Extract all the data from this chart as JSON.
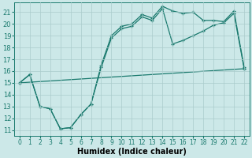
{
  "xlabel": "Humidex (Indice chaleur)",
  "background_color": "#cce8e8",
  "grid_color": "#aacccc",
  "line_color": "#1a7a6e",
  "xlim": [
    -0.5,
    22.5
  ],
  "ylim": [
    10.5,
    21.8
  ],
  "yticks": [
    11,
    12,
    13,
    14,
    15,
    16,
    17,
    18,
    19,
    20,
    21
  ],
  "xticks": [
    0,
    1,
    2,
    3,
    4,
    5,
    6,
    7,
    8,
    9,
    10,
    11,
    12,
    13,
    14,
    15,
    16,
    17,
    18,
    19,
    20,
    21,
    22
  ],
  "series1_x": [
    0,
    1,
    2,
    3,
    4,
    5,
    6,
    7,
    8,
    9,
    10,
    11,
    12,
    13,
    14,
    15,
    16,
    17,
    18,
    19,
    20,
    21,
    22
  ],
  "series1_y": [
    15.0,
    15.7,
    13.0,
    12.8,
    11.1,
    11.2,
    12.3,
    13.2,
    16.5,
    19.0,
    19.8,
    20.0,
    20.8,
    20.5,
    21.5,
    21.1,
    20.9,
    21.0,
    20.3,
    20.3,
    20.2,
    21.1,
    16.3
  ],
  "series2_x": [
    0,
    1,
    2,
    3,
    4,
    5,
    6,
    7,
    8,
    9,
    10,
    11,
    12,
    13,
    14,
    15,
    16,
    17,
    18,
    19,
    20,
    21,
    22
  ],
  "series2_y": [
    15.0,
    15.7,
    13.0,
    12.8,
    11.1,
    11.2,
    12.3,
    13.2,
    16.3,
    18.8,
    19.6,
    19.8,
    20.6,
    20.3,
    21.3,
    18.3,
    18.6,
    19.0,
    19.4,
    19.9,
    20.1,
    20.9,
    16.2
  ],
  "series3_x": [
    0,
    22
  ],
  "series3_y": [
    15.0,
    16.2
  ]
}
